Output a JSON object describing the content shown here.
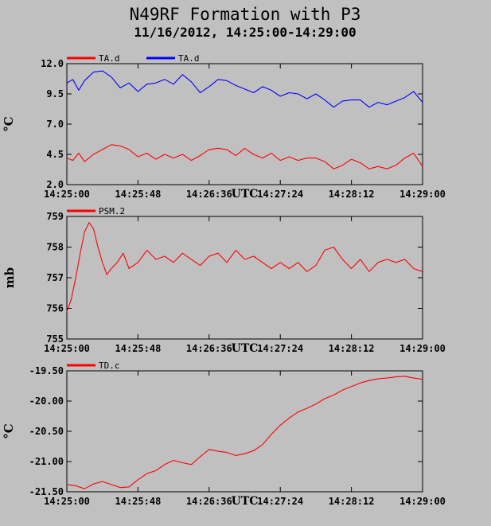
{
  "header": {
    "title": "N49RF Formation with P3",
    "subtitle": "11/16/2012, 14:25:00-14:29:00"
  },
  "chart_data": [
    {
      "type": "line",
      "ylabel": "°C",
      "xlabel": "UTC",
      "x_ticks": [
        "14:25:00",
        "14:25:48",
        "14:26:36",
        "14:27:24",
        "14:28:12",
        "14:29:00"
      ],
      "y_ticks": [
        "12.0",
        "9.5",
        "7.0",
        "4.5",
        "2.0"
      ],
      "ylim": [
        2.0,
        12.0
      ],
      "xlim_seconds": [
        0,
        240
      ],
      "grid": false,
      "legend_position": "top-left",
      "series": [
        {
          "name": "TA.d",
          "color": "#ff0000",
          "points": [
            [
              0,
              4.2
            ],
            [
              4,
              4.0
            ],
            [
              8,
              4.6
            ],
            [
              12,
              3.9
            ],
            [
              18,
              4.5
            ],
            [
              24,
              4.9
            ],
            [
              30,
              5.3
            ],
            [
              36,
              5.2
            ],
            [
              42,
              4.9
            ],
            [
              48,
              4.3
            ],
            [
              54,
              4.6
            ],
            [
              60,
              4.1
            ],
            [
              66,
              4.5
            ],
            [
              72,
              4.2
            ],
            [
              78,
              4.5
            ],
            [
              84,
              4.0
            ],
            [
              90,
              4.4
            ],
            [
              96,
              4.9
            ],
            [
              102,
              5.0
            ],
            [
              108,
              4.9
            ],
            [
              114,
              4.4
            ],
            [
              120,
              5.0
            ],
            [
              126,
              4.5
            ],
            [
              132,
              4.2
            ],
            [
              138,
              4.6
            ],
            [
              144,
              4.0
            ],
            [
              150,
              4.3
            ],
            [
              156,
              4.0
            ],
            [
              162,
              4.2
            ],
            [
              168,
              4.2
            ],
            [
              174,
              3.9
            ],
            [
              180,
              3.3
            ],
            [
              186,
              3.6
            ],
            [
              192,
              4.1
            ],
            [
              198,
              3.8
            ],
            [
              204,
              3.3
            ],
            [
              210,
              3.5
            ],
            [
              216,
              3.3
            ],
            [
              222,
              3.6
            ],
            [
              228,
              4.2
            ],
            [
              234,
              4.6
            ],
            [
              240,
              3.5
            ]
          ]
        },
        {
          "name": "TA.d",
          "color": "#0000ff",
          "points": [
            [
              0,
              10.4
            ],
            [
              4,
              10.7
            ],
            [
              8,
              9.8
            ],
            [
              12,
              10.6
            ],
            [
              18,
              11.3
            ],
            [
              24,
              11.4
            ],
            [
              30,
              10.9
            ],
            [
              36,
              10.0
            ],
            [
              42,
              10.4
            ],
            [
              48,
              9.7
            ],
            [
              54,
              10.3
            ],
            [
              60,
              10.4
            ],
            [
              66,
              10.7
            ],
            [
              72,
              10.3
            ],
            [
              78,
              11.1
            ],
            [
              84,
              10.5
            ],
            [
              90,
              9.6
            ],
            [
              96,
              10.1
            ],
            [
              102,
              10.7
            ],
            [
              108,
              10.6
            ],
            [
              114,
              10.2
            ],
            [
              120,
              9.9
            ],
            [
              126,
              9.6
            ],
            [
              132,
              10.1
            ],
            [
              138,
              9.8
            ],
            [
              144,
              9.3
            ],
            [
              150,
              9.6
            ],
            [
              156,
              9.5
            ],
            [
              162,
              9.1
            ],
            [
              168,
              9.5
            ],
            [
              174,
              9.0
            ],
            [
              180,
              8.4
            ],
            [
              186,
              8.9
            ],
            [
              192,
              9.0
            ],
            [
              198,
              9.0
            ],
            [
              204,
              8.4
            ],
            [
              210,
              8.8
            ],
            [
              216,
              8.6
            ],
            [
              222,
              8.9
            ],
            [
              228,
              9.2
            ],
            [
              234,
              9.7
            ],
            [
              240,
              8.8
            ]
          ]
        }
      ]
    },
    {
      "type": "line",
      "ylabel": "mb",
      "xlabel": "UTC",
      "x_ticks": [
        "14:25:00",
        "14:25:48",
        "14:26:36",
        "14:27:24",
        "14:28:12",
        "14:29:00"
      ],
      "y_ticks": [
        "759",
        "758",
        "757",
        "756",
        "755"
      ],
      "ylim": [
        755,
        759
      ],
      "xlim_seconds": [
        0,
        240
      ],
      "grid": false,
      "legend_position": "top-left",
      "series": [
        {
          "name": "PSM.2",
          "color": "#ff0000",
          "points": [
            [
              0,
              755.9
            ],
            [
              3,
              756.3
            ],
            [
              6,
              757.0
            ],
            [
              9,
              757.8
            ],
            [
              12,
              758.5
            ],
            [
              15,
              758.8
            ],
            [
              18,
              758.6
            ],
            [
              21,
              758.0
            ],
            [
              24,
              757.5
            ],
            [
              27,
              757.1
            ],
            [
              30,
              757.3
            ],
            [
              34,
              757.5
            ],
            [
              38,
              757.8
            ],
            [
              42,
              757.3
            ],
            [
              48,
              757.5
            ],
            [
              54,
              757.9
            ],
            [
              60,
              757.6
            ],
            [
              66,
              757.7
            ],
            [
              72,
              757.5
            ],
            [
              78,
              757.8
            ],
            [
              84,
              757.6
            ],
            [
              90,
              757.4
            ],
            [
              96,
              757.7
            ],
            [
              102,
              757.8
            ],
            [
              108,
              757.5
            ],
            [
              114,
              757.9
            ],
            [
              120,
              757.6
            ],
            [
              126,
              757.7
            ],
            [
              132,
              757.5
            ],
            [
              138,
              757.3
            ],
            [
              144,
              757.5
            ],
            [
              150,
              757.3
            ],
            [
              156,
              757.5
            ],
            [
              162,
              757.2
            ],
            [
              168,
              757.4
            ],
            [
              174,
              757.9
            ],
            [
              180,
              758.0
            ],
            [
              186,
              757.6
            ],
            [
              192,
              757.3
            ],
            [
              198,
              757.6
            ],
            [
              204,
              757.2
            ],
            [
              210,
              757.5
            ],
            [
              216,
              757.6
            ],
            [
              222,
              757.5
            ],
            [
              228,
              757.6
            ],
            [
              234,
              757.3
            ],
            [
              240,
              757.2
            ]
          ]
        }
      ]
    },
    {
      "type": "line",
      "ylabel": "°C",
      "xlabel": "UTC",
      "x_ticks": [
        "14:25:00",
        "14:25:48",
        "14:26:36",
        "14:27:24",
        "14:28:12",
        "14:29:00"
      ],
      "y_ticks": [
        "-19.50",
        "-20.00",
        "-20.50",
        "-21.00",
        "-21.50"
      ],
      "ylim": [
        -21.5,
        -19.5
      ],
      "xlim_seconds": [
        0,
        240
      ],
      "grid": false,
      "legend_position": "top-left",
      "series": [
        {
          "name": "TD.c",
          "color": "#ff0000",
          "points": [
            [
              0,
              -21.38
            ],
            [
              6,
              -21.4
            ],
            [
              12,
              -21.45
            ],
            [
              18,
              -21.37
            ],
            [
              24,
              -21.33
            ],
            [
              30,
              -21.38
            ],
            [
              36,
              -21.43
            ],
            [
              42,
              -21.42
            ],
            [
              48,
              -21.3
            ],
            [
              54,
              -21.2
            ],
            [
              60,
              -21.15
            ],
            [
              66,
              -21.05
            ],
            [
              72,
              -20.98
            ],
            [
              78,
              -21.02
            ],
            [
              84,
              -21.05
            ],
            [
              90,
              -20.92
            ],
            [
              96,
              -20.8
            ],
            [
              102,
              -20.83
            ],
            [
              108,
              -20.85
            ],
            [
              114,
              -20.9
            ],
            [
              120,
              -20.87
            ],
            [
              126,
              -20.82
            ],
            [
              132,
              -20.72
            ],
            [
              138,
              -20.55
            ],
            [
              144,
              -20.4
            ],
            [
              150,
              -20.28
            ],
            [
              156,
              -20.18
            ],
            [
              162,
              -20.12
            ],
            [
              168,
              -20.05
            ],
            [
              174,
              -19.96
            ],
            [
              180,
              -19.9
            ],
            [
              186,
              -19.82
            ],
            [
              192,
              -19.76
            ],
            [
              198,
              -19.7
            ],
            [
              204,
              -19.66
            ],
            [
              210,
              -19.63
            ],
            [
              216,
              -19.62
            ],
            [
              222,
              -19.6
            ],
            [
              228,
              -19.59
            ],
            [
              234,
              -19.62
            ],
            [
              240,
              -19.64
            ]
          ]
        }
      ]
    }
  ]
}
